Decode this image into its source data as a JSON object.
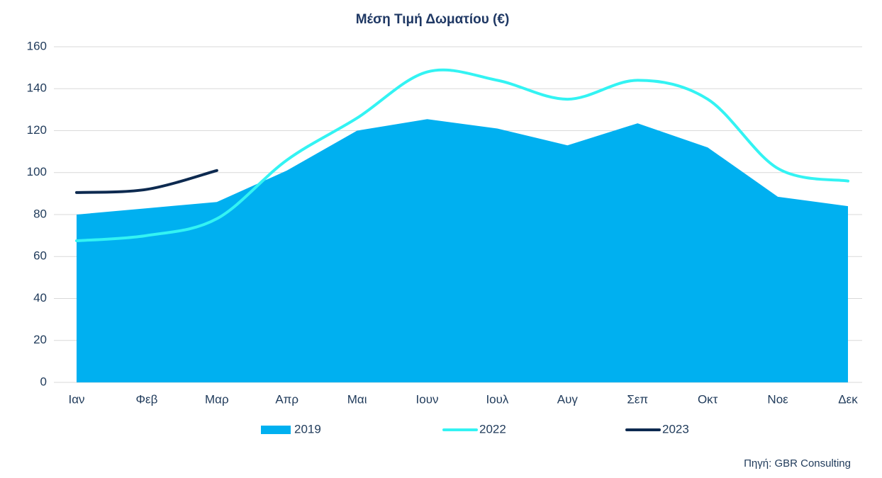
{
  "chart_data": {
    "type": "line",
    "title": "Μέση Τιμή Δωματίου (€)",
    "categories": [
      "Ιαν",
      "Φεβ",
      "Μαρ",
      "Απρ",
      "Μαι",
      "Ιουν",
      "Ιουλ",
      "Αυγ",
      "Σεπ",
      "Οκτ",
      "Νοε",
      "Δεκ"
    ],
    "series": [
      {
        "name": "2019",
        "color": "#00b0f0",
        "kind": "area",
        "values": [
          80,
          83,
          86,
          101,
          120,
          125.5,
          121,
          113,
          123.5,
          112,
          88.5,
          84
        ]
      },
      {
        "name": "2022",
        "color": "#33f3f3",
        "kind": "line",
        "smooth": true,
        "values": [
          67.5,
          70,
          78,
          106,
          126,
          148,
          144,
          135,
          144,
          135,
          102,
          96
        ]
      },
      {
        "name": "2023",
        "color": "#0d2a50",
        "kind": "line",
        "smooth": true,
        "values": [
          90.5,
          92,
          101,
          null,
          null,
          null,
          null,
          null,
          null,
          null,
          null,
          null
        ]
      }
    ],
    "ylim": [
      0,
      160
    ],
    "yticks": [
      0,
      20,
      40,
      60,
      80,
      100,
      120,
      140,
      160
    ],
    "grid": true,
    "legend": "bottom",
    "annotation": "Πηγή: GBR Consulting"
  }
}
